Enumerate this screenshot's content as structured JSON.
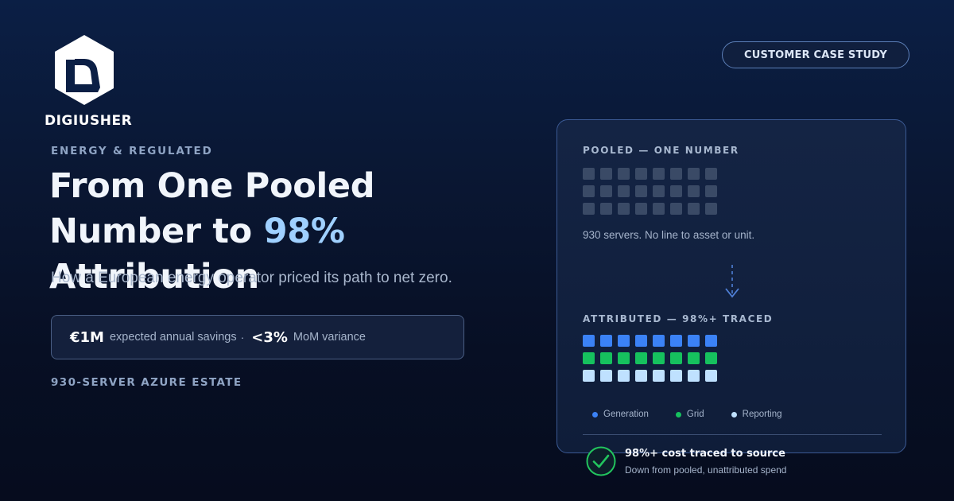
{
  "brand": {
    "logo_text": "DIGIUSHER"
  },
  "badge": {
    "label": "CUSTOMER CASE STUDY"
  },
  "hero": {
    "eyebrow": "ENERGY & REGULATED",
    "headline_line1": "From One Pooled",
    "headline_line2_prefix": "Number to ",
    "headline_accent": "98%",
    "headline_line2_suffix": " Attribution",
    "subtitle": "How a European energy operator priced its path to net zero.",
    "accent_color": "#9fd0ff"
  },
  "stats": [
    {
      "value": "€1M",
      "label": "expected annual savings"
    },
    {
      "value": "<3%",
      "label": "MoM variance"
    }
  ],
  "stats_separator": "·",
  "estate_label": "930-SERVER AZURE ESTATE",
  "panel": {
    "pooled_heading": "POOLED — ONE NUMBER",
    "pooled_note": "930 servers. No line to asset or unit.",
    "pooled_color": "#3a4a66",
    "attributed_heading": "ATTRIBUTED — 98%+ TRACED",
    "grid_rows": 3,
    "grid_columns": 8,
    "legend": [
      {
        "label": "Generation",
        "color": "#3b82f6"
      },
      {
        "label": "Grid",
        "color": "#16c15e"
      },
      {
        "label": "Reporting",
        "color": "#bfe1ff"
      }
    ],
    "result_title": "98%+ cost traced to source",
    "result_subtitle": "Down from pooled, unattributed spend",
    "result_color": "#22c55e"
  },
  "icons": {
    "logo": "digiusher-hexagon-logo",
    "arrow": "dashed-arrow-down-icon",
    "check": "check-circle-icon"
  }
}
